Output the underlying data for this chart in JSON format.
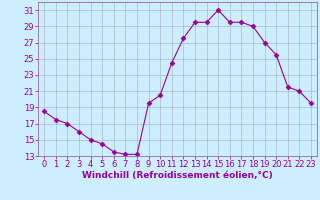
{
  "x": [
    0,
    1,
    2,
    3,
    4,
    5,
    6,
    7,
    8,
    9,
    10,
    11,
    12,
    13,
    14,
    15,
    16,
    17,
    18,
    19,
    20,
    21,
    22,
    23
  ],
  "y": [
    18.5,
    17.5,
    17.0,
    16.0,
    15.0,
    14.5,
    13.5,
    13.2,
    13.2,
    19.5,
    20.5,
    24.5,
    27.5,
    29.5,
    29.5,
    31.0,
    29.5,
    29.5,
    29.0,
    27.0,
    25.5,
    21.5,
    21.0,
    19.5
  ],
  "line_color": "#990099",
  "marker": "D",
  "marker_size": 2.5,
  "bg_color": "#cceeff",
  "grid_color": "#aabbcc",
  "xlabel": "Windchill (Refroidissement éolien,°C)",
  "xlim": [
    -0.5,
    23.5
  ],
  "ylim": [
    13,
    32
  ],
  "yticks": [
    13,
    15,
    17,
    19,
    21,
    23,
    25,
    27,
    29,
    31
  ],
  "xticks": [
    0,
    1,
    2,
    3,
    4,
    5,
    6,
    7,
    8,
    9,
    10,
    11,
    12,
    13,
    14,
    15,
    16,
    17,
    18,
    19,
    20,
    21,
    22,
    23
  ],
  "xlabel_fontsize": 6.5,
  "tick_fontsize": 6.0,
  "spine_color": "#9966aa"
}
